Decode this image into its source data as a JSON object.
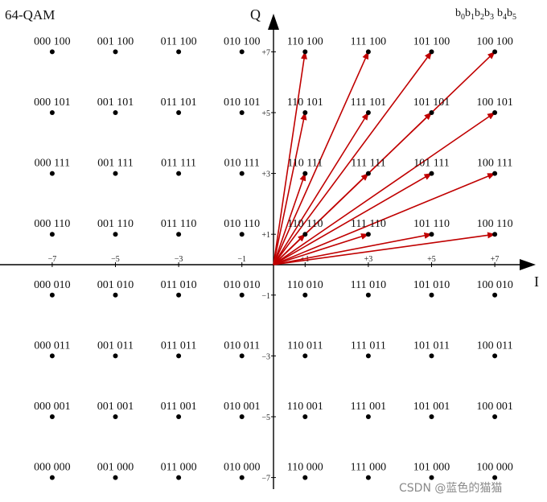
{
  "title": "64-QAM",
  "axes": {
    "x_label": "I",
    "y_label": "Q",
    "x_ticks": [
      "−7",
      "−5",
      "−3",
      "−1",
      "+1",
      "+3",
      "+5",
      "+7"
    ],
    "x_tick_values": [
      -7,
      -5,
      -3,
      -1,
      1,
      3,
      5,
      7
    ],
    "y_ticks": [
      "+7",
      "+5",
      "+3",
      "+1",
      "−1",
      "−3",
      "−5",
      "−7"
    ],
    "y_tick_values": [
      7,
      5,
      3,
      1,
      -1,
      -3,
      -5,
      -7
    ]
  },
  "bit_order": {
    "prefix": "b",
    "groups": [
      [
        "0",
        "1",
        "2",
        "3"
      ],
      [
        "4",
        "5"
      ]
    ]
  },
  "watermark": "CSDN @蓝色的猫猫",
  "colors": {
    "vector": "#c00000",
    "text": "#111111",
    "axis": "#000000",
    "point": "#000000",
    "watermark": "#8a8a8a"
  },
  "constellation": {
    "i_levels": [
      -7,
      -5,
      -3,
      -1,
      1,
      3,
      5,
      7
    ],
    "q_levels": [
      7,
      5,
      3,
      1,
      -1,
      -3,
      -5,
      -7
    ],
    "rows": [
      [
        "000 100",
        "001 100",
        "011 100",
        "010 100",
        "110 100",
        "111 100",
        "101 100",
        "100 100"
      ],
      [
        "000 101",
        "001 101",
        "011 101",
        "010 101",
        "110 101",
        "111 101",
        "101 101",
        "100 101"
      ],
      [
        "000 111",
        "001 111",
        "011 111",
        "010 111",
        "110 111",
        "111 111",
        "101 111",
        "100 111"
      ],
      [
        "000 110",
        "001 110",
        "011 110",
        "010 110",
        "110 110",
        "111 110",
        "101 110",
        "100 110"
      ],
      [
        "000 010",
        "001 010",
        "011 010",
        "010 010",
        "110 010",
        "111 010",
        "101 010",
        "100 010"
      ],
      [
        "000 011",
        "001 011",
        "011 011",
        "010 011",
        "110 011",
        "111 011",
        "101 011",
        "100 011"
      ],
      [
        "000 001",
        "001 001",
        "011 001",
        "010 001",
        "110 001",
        "111 001",
        "101 001",
        "100 001"
      ],
      [
        "000 000",
        "001 000",
        "011 000",
        "010 000",
        "110 000",
        "111 000",
        "101 000",
        "100 000"
      ]
    ]
  },
  "vectors": {
    "origin": [
      0,
      0
    ],
    "targets": [
      [
        1,
        7
      ],
      [
        3,
        7
      ],
      [
        5,
        7
      ],
      [
        7,
        7
      ],
      [
        1,
        5
      ],
      [
        3,
        5
      ],
      [
        5,
        5
      ],
      [
        7,
        5
      ],
      [
        1,
        3
      ],
      [
        3,
        3
      ],
      [
        5,
        3
      ],
      [
        7,
        3
      ],
      [
        1,
        1
      ],
      [
        3,
        1
      ],
      [
        5,
        1
      ],
      [
        7,
        1
      ]
    ]
  }
}
